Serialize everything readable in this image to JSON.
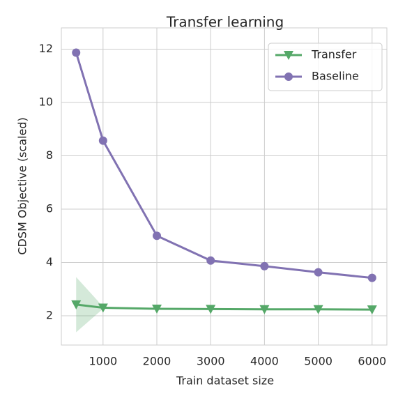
{
  "chart_data": {
    "type": "line",
    "title": "Transfer learning",
    "xlabel": "Train dataset size",
    "ylabel": "CDSM Objective (scaled)",
    "x": [
      500,
      1000,
      2000,
      3000,
      4000,
      5000,
      6000
    ],
    "series": [
      {
        "name": "Transfer",
        "color": "#55a868",
        "marker": "triangle-down",
        "values": [
          2.42,
          2.3,
          2.26,
          2.25,
          2.24,
          2.24,
          2.23
        ],
        "lower": [
          1.38,
          2.26,
          2.24,
          2.23,
          2.22,
          2.22,
          2.21
        ],
        "upper": [
          3.45,
          2.34,
          2.28,
          2.27,
          2.26,
          2.26,
          2.25
        ]
      },
      {
        "name": "Baseline",
        "color": "#8172b2",
        "marker": "circle",
        "values": [
          11.87,
          8.57,
          5.0,
          4.07,
          3.86,
          3.63,
          3.42
        ]
      }
    ],
    "xlim": [
      225,
      6275
    ],
    "xticks": [
      1000,
      2000,
      3000,
      4000,
      5000,
      6000
    ],
    "ylim": [
      0.9,
      12.8
    ],
    "yticks": [
      2,
      4,
      6,
      8,
      10,
      12
    ],
    "grid": true,
    "legend": "upper right"
  }
}
